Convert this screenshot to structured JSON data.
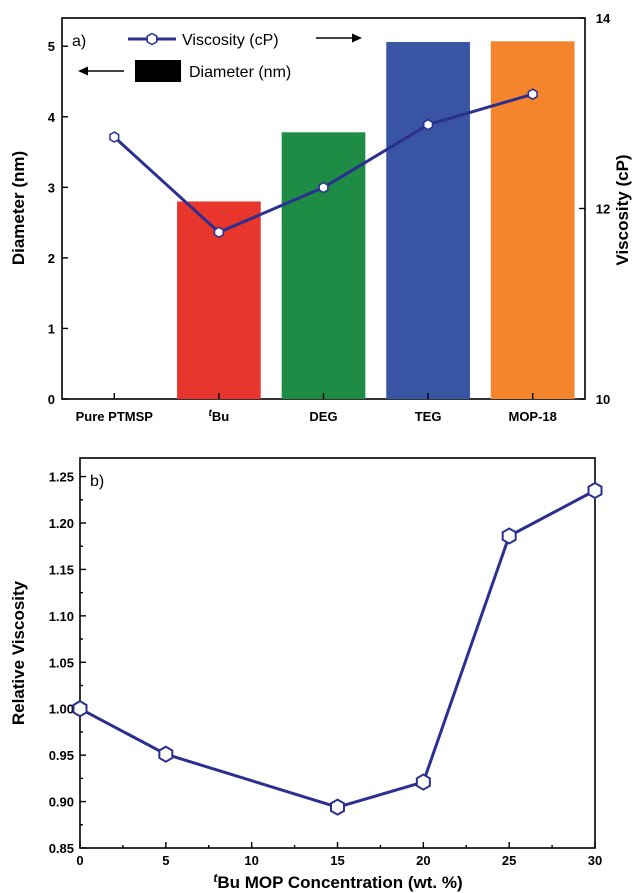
{
  "chart_data": [
    {
      "type": "bar",
      "panel_label": "a)",
      "categories": [
        "Pure PTMSP",
        "Bu",
        "DEG",
        "TEG",
        "MOP-18"
      ],
      "category_superscripts": [
        "",
        "t",
        "",
        "",
        ""
      ],
      "series": [
        {
          "name": "Diameter (nm)",
          "axis": "left",
          "values": [
            null,
            2.8,
            3.78,
            5.06,
            5.07
          ],
          "colors": [
            "",
            "#e8362d",
            "#1e8c45",
            "#3a54a4",
            "#f4852d"
          ]
        },
        {
          "name": "Viscosity (cP)",
          "axis": "right",
          "type": "line",
          "color": "#2b2f8f",
          "values": [
            12.75,
            11.75,
            12.22,
            12.88,
            13.2
          ]
        }
      ],
      "ylabel": "Diameter (nm)",
      "ylim": [
        0,
        5.4
      ],
      "yticks": [
        "0",
        "1",
        "2",
        "3",
        "4",
        "5"
      ],
      "y2label": "Viscosity (cP)",
      "y2lim": [
        10,
        14
      ],
      "y2ticks": [
        "10",
        "12",
        "14"
      ],
      "legend": {
        "placement": "top-left"
      }
    },
    {
      "type": "line",
      "panel_label": "b)",
      "series": [
        {
          "color": "#2b2f8f",
          "x": [
            0,
            5,
            15,
            20,
            25,
            30
          ],
          "values": [
            1.0,
            0.951,
            0.894,
            0.921,
            1.186,
            1.235
          ]
        }
      ],
      "xlabel_super": "t",
      "xlabel": "Bu MOP Concentration (wt. %)",
      "ylabel": "Relative Viscosity",
      "xlim": [
        0,
        30
      ],
      "ylim": [
        0.85,
        1.27
      ],
      "xticks": [
        "0",
        "5",
        "10",
        "15",
        "20",
        "25",
        "30"
      ],
      "yticks": [
        "0.85",
        "0.90",
        "0.95",
        "1.00",
        "1.05",
        "1.10",
        "1.15",
        "1.20",
        "1.25"
      ]
    }
  ]
}
